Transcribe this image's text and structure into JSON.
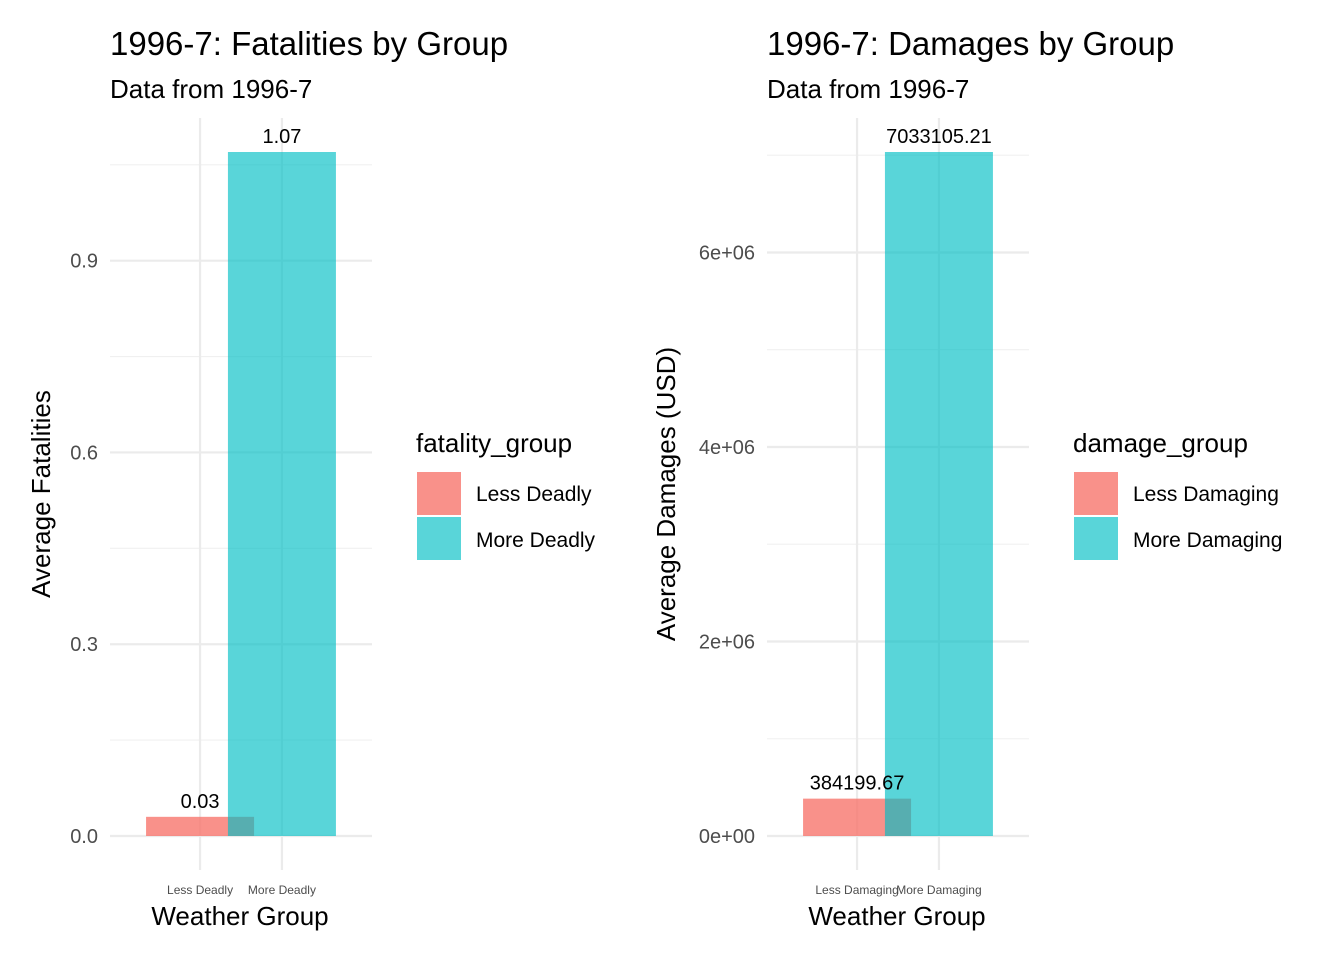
{
  "chart_data": [
    {
      "type": "bar",
      "title": "1996-7: Fatalities by Group",
      "subtitle": "Data from 1996-7",
      "xlabel": "Weather Group",
      "ylabel": "Average Fatalities",
      "categories": [
        "Less Deadly",
        "More Deadly"
      ],
      "values": [
        0.03,
        1.07
      ],
      "value_labels": [
        "0.03",
        "1.07"
      ],
      "ylim": [
        0,
        1.07
      ],
      "yticks": [
        0.0,
        0.3,
        0.6,
        0.9
      ],
      "ytick_labels": [
        "0.0",
        "0.3",
        "0.6",
        "0.9"
      ],
      "grid": true,
      "legend": {
        "title": "fatality_group",
        "position": "right",
        "entries": [
          "Less Deadly",
          "More Deadly"
        ]
      },
      "colors": [
        "#F8766D",
        "#00BFC4"
      ]
    },
    {
      "type": "bar",
      "title": "1996-7: Damages by Group",
      "subtitle": "Data from 1996-7",
      "xlabel": "Weather Group",
      "ylabel": "Average Damages (USD)",
      "categories": [
        "Less Damaging",
        "More Damaging"
      ],
      "values": [
        384199.67,
        7033105.21
      ],
      "value_labels": [
        "384199.67",
        "7033105.21"
      ],
      "ylim": [
        0,
        7033105.21
      ],
      "yticks": [
        0,
        2000000,
        4000000,
        6000000
      ],
      "ytick_labels": [
        "0e+00",
        "2e+06",
        "4e+06",
        "6e+06"
      ],
      "grid": true,
      "legend": {
        "title": "damage_group",
        "position": "right",
        "entries": [
          "Less Damaging",
          "More Damaging"
        ]
      },
      "colors": [
        "#F8766D",
        "#00BFC4"
      ]
    }
  ]
}
